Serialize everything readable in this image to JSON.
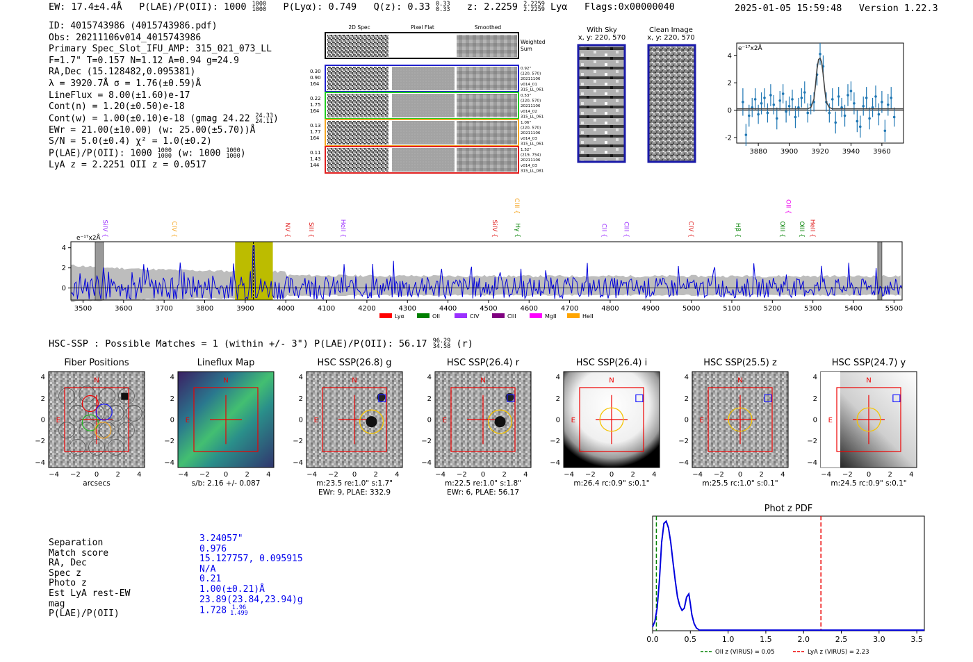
{
  "header": {
    "ew": "EW: 17.4±4.4Å",
    "plae_label": "P(LAE)/P(OII): 1000",
    "plae_hi": "1000",
    "plae_lo": "1000",
    "plya": "P(Lyα): 0.749",
    "qz_label": "Q(z): 0.33",
    "qz_hi": "0.33",
    "qz_lo": "0.33",
    "z_label": "z: 2.2259",
    "z_hi": "2.2259",
    "z_lo": "2.2259",
    "z_line": "Lyα",
    "flags": "Flags:0x00000040",
    "datetime": "2025-01-05 15:59:48",
    "version": "Version 1.22.3"
  },
  "info": {
    "id": "ID: 4015743986 (4015743986.pdf)",
    "obs": "Obs: 20211106v014_4015743986",
    "primary": "Primary Spec_Slot_IFU_AMP: 315_021_073_LL",
    "fiber": "F=1.7\"  T=0.157  N=1.12  A=0.94  g=24.9",
    "radec": "RA,Dec (15.128482,0.095381)",
    "lambda": "λ = 3920.7Å   σ = 1.76(±0.59)Å",
    "lineflux": "LineFlux = 8.00(±1.60)e-17",
    "contn": "Cont(n) = 1.20(±0.50)e-18",
    "contw": "Cont(w) = 1.00(±0.10)e-18 (gmag 24.22",
    "contw_hi": "24.33",
    "contw_lo": "24.11",
    "contw_end": ")",
    "ewr": "EWr = 21.00(±10.00) (w: 25.00(±5.70))Å",
    "sn": "S/N = 5.0(±0.4)  χ² = 1.0(±0.2)",
    "plae": "P(LAE)/P(OII): 1000",
    "plae_hi": "1000",
    "plae_lo": "1000",
    "plae_w": "(w: 1000",
    "plae_w_hi": "1000",
    "plae_w_lo": "1000",
    "plae_end": ")",
    "zs": "LyA z = 2.2251   OII z = 0.0517"
  },
  "cutouts": {
    "col_2d": "2D Spec",
    "col_flat": "Pixel Flat",
    "col_smooth": "Smoothed",
    "weighted": "Weighted",
    "sum": "Sum",
    "rows": [
      {
        "left": [
          "0.30",
          "0.90",
          "164"
        ],
        "right": [
          "0.92\"",
          "(220, 570)",
          "20211106",
          "v014_01",
          "315_LL_061"
        ],
        "color": "#1f1fcc"
      },
      {
        "left": [
          "0.22",
          "1.75",
          "164"
        ],
        "right": [
          "0.53\"",
          "(220, 570)",
          "20211106",
          "v014_02",
          "315_LL_061"
        ],
        "color": "#22cc22"
      },
      {
        "left": [
          "0.13",
          "1.77",
          "164"
        ],
        "right": [
          "1.06\"",
          "(220, 570)",
          "20211106",
          "v014_03",
          "315_LL_061"
        ],
        "color": "#f5a623"
      },
      {
        "left": [
          "0.11",
          "1.43",
          "144"
        ],
        "right": [
          "1.52\"",
          "(219, 754)",
          "20211106",
          "v014_03",
          "315_LL_081"
        ],
        "color": "#e02020"
      }
    ]
  },
  "with_sky": {
    "title": "With Sky",
    "coords": "x, y: 220, 570"
  },
  "clean_image": {
    "title": "Clean Image",
    "coords": "x, y: 220, 570"
  },
  "zoom_plot": {
    "unit": "e⁻¹⁷x2Å"
  },
  "full_spec": {
    "unit": "e⁻¹⁷x2Å"
  },
  "lines": [
    {
      "name": "SiIV",
      "x": 3550,
      "color": "#9b30ff",
      "row": 1
    },
    {
      "name": "CIV",
      "x": 3720,
      "color": "#f5a623",
      "row": 1
    },
    {
      "name": "NV",
      "x": 4000,
      "color": "#e02020",
      "row": 1
    },
    {
      "name": "SiII",
      "x": 4058,
      "color": "#e02020",
      "row": 1
    },
    {
      "name": "HeII",
      "x": 4137,
      "color": "#9b30ff",
      "row": 1
    },
    {
      "name": "SiIV",
      "x": 4510,
      "color": "#e02020",
      "row": 1
    },
    {
      "name": "CIII",
      "x": 4565,
      "color": "#f5a623",
      "row": 0
    },
    {
      "name": "Hγ",
      "x": 4567,
      "color": "#008000",
      "row": 1
    },
    {
      "name": "CII",
      "x": 4780,
      "color": "#9b30ff",
      "row": 1
    },
    {
      "name": "CIII",
      "x": 4835,
      "color": "#9b30ff",
      "row": 1
    },
    {
      "name": "CIV",
      "x": 4995,
      "color": "#e02020",
      "row": 1
    },
    {
      "name": "Hβ",
      "x": 5110,
      "color": "#008000",
      "row": 1
    },
    {
      "name": "OII",
      "x": 5235,
      "color": "#ee00ee",
      "row": 0
    },
    {
      "name": "OIII",
      "x": 5220,
      "color": "#008000",
      "row": 1
    },
    {
      "name": "OIII",
      "x": 5268,
      "color": "#008000",
      "row": 1
    },
    {
      "name": "HeII",
      "x": 5295,
      "color": "#e02020",
      "row": 1
    }
  ],
  "legend": [
    {
      "label": "Lyα",
      "color": "#ff0000"
    },
    {
      "label": "OII",
      "color": "#008000"
    },
    {
      "label": "CIV",
      "color": "#9b30ff"
    },
    {
      "label": "CIII",
      "color": "#800080"
    },
    {
      "label": "MgII",
      "color": "#ff00ff"
    },
    {
      "label": "HeII",
      "color": "#ffa500"
    }
  ],
  "hsc": {
    "line": "HSC-SSP : Possible Matches = 1 (within +/- 3\")  P(LAE)/P(OII): 56.17",
    "hi": "96.29",
    "lo": "34.58",
    "band": "(r)"
  },
  "panels": [
    {
      "title": "Fiber Positions",
      "cap1": "arcsecs",
      "cap2": ""
    },
    {
      "title": "Lineflux Map",
      "cap1": "s/b: 2.16 +/- 0.087",
      "cap2": ""
    },
    {
      "title": "HSC SSP(26.8) g",
      "cap1": "m:23.5  re:1.0\"  s:1.7\"",
      "cap2": "EWr: 9, PLAE: 332.9"
    },
    {
      "title": "HSC SSP(26.4) r",
      "cap1": "m:22.5  re:1.0\"  s:1.8\"",
      "cap2": "EWr: 6, PLAE: 56.17"
    },
    {
      "title": "HSC SSP(26.4) i",
      "cap1": "m:26.4 rc:0.9\"  s:0.1\"",
      "cap2": ""
    },
    {
      "title": "HSC SSP(25.5) z",
      "cap1": "m:25.5 rc:1.0\"  s:0.1\"",
      "cap2": ""
    },
    {
      "title": "HSC SSP(24.7) y",
      "cap1": "m:24.5 rc:0.9\"  s:0.1\"",
      "cap2": ""
    }
  ],
  "panel_ticks": {
    "x": [
      "−4",
      "−2",
      "0",
      "2",
      "4"
    ],
    "y": [
      "4",
      "2",
      "0",
      "−2",
      "−4"
    ],
    "N": "N",
    "E": "E"
  },
  "match": {
    "labels": [
      "Separation",
      "Match score",
      "RA, Dec",
      "Spec z",
      "Photo z",
      "Est LyA rest-EW",
      "mag",
      "P(LAE)/P(OII)"
    ],
    "values": [
      "3.24057\"",
      "0.976",
      "15.127757, 0.095915",
      "N/A",
      "0.21",
      "1.00(±0.21)Å",
      "23.89(23.84,23.94)g",
      "1.728"
    ],
    "plae_hi": "1.96",
    "plae_lo": "1.499"
  },
  "chart_data": [
    {
      "type": "line",
      "title": "",
      "ylabel": "e⁻¹⁷x2Å",
      "xlim": [
        3866,
        3974
      ],
      "ylim": [
        -2.4,
        4.9
      ],
      "x_ticks": [
        3880,
        3900,
        3920,
        3940,
        3960
      ],
      "y_ticks": [
        -2,
        0,
        2,
        4
      ],
      "series": [
        {
          "name": "data",
          "x": [
            3870,
            3872,
            3874,
            3876,
            3878,
            3880,
            3882,
            3884,
            3886,
            3888,
            3890,
            3892,
            3894,
            3896,
            3898,
            3900,
            3902,
            3904,
            3906,
            3908,
            3910,
            3912,
            3914,
            3916,
            3918,
            3920,
            3922,
            3924,
            3926,
            3928,
            3930,
            3932,
            3934,
            3936,
            3938,
            3940,
            3942,
            3944,
            3946,
            3948,
            3950,
            3952,
            3954,
            3956,
            3958,
            3960,
            3962,
            3964,
            3966,
            3968
          ],
          "values": [
            0.6,
            -1.8,
            -0.4,
            0.2,
            0.8,
            -0.3,
            0.5,
            0.9,
            -0.2,
            1.1,
            0.4,
            -0.6,
            0.7,
            1.2,
            -0.1,
            0.3,
            0.8,
            -0.5,
            0.2,
            0.9,
            1.3,
            -0.2,
            0.4,
            0.6,
            2.6,
            4.1,
            3.2,
            0.6,
            -0.2,
            0.8,
            -0.9,
            1.0,
            0.2,
            -0.4,
            1.1,
            1.4,
            0.5,
            -0.8,
            -1.2,
            0.3,
            0.9,
            -0.6,
            0.2,
            1.0,
            -0.3,
            0.6,
            -1.5,
            0.4,
            0.9,
            -0.5
          ],
          "errors": [
            1.0,
            0.8,
            0.8,
            0.7,
            0.8,
            0.7,
            0.8,
            0.7,
            0.7,
            0.8,
            0.7,
            0.8,
            0.7,
            0.7,
            0.8,
            0.7,
            0.7,
            0.8,
            0.7,
            0.7,
            0.8,
            0.7,
            0.7,
            0.7,
            0.8,
            0.8,
            0.8,
            0.7,
            0.7,
            0.8,
            0.8,
            0.7,
            0.7,
            0.8,
            0.8,
            0.7,
            0.8,
            0.8,
            0.8,
            0.7,
            0.8,
            0.8,
            0.7,
            0.8,
            0.8,
            0.8,
            0.8,
            0.8,
            0.8,
            0.7
          ]
        },
        {
          "name": "fit",
          "x": [
            3866,
            3912,
            3914,
            3916,
            3917,
            3918,
            3919,
            3920,
            3921,
            3922,
            3923,
            3924,
            3926,
            3928,
            3974
          ],
          "values": [
            0.1,
            0.1,
            0.2,
            0.8,
            1.8,
            3.0,
            3.7,
            3.8,
            3.5,
            2.6,
            1.5,
            0.6,
            0.2,
            0.1,
            0.1
          ]
        }
      ]
    },
    {
      "type": "line",
      "title": "",
      "ylabel": "e⁻¹⁷x2Å",
      "xlim": [
        3470,
        5520
      ],
      "ylim": [
        -1.2,
        4.6
      ],
      "x_ticks": [
        3500,
        3600,
        3700,
        3800,
        3900,
        4000,
        4100,
        4200,
        4300,
        4400,
        4500,
        4600,
        4700,
        4800,
        4900,
        5000,
        5100,
        5200,
        5300,
        5400,
        5500
      ],
      "y_ticks": [
        0,
        2,
        4
      ],
      "highlight_range": [
        3875,
        3968
      ],
      "marker_x": 3920,
      "masked_ranges": [
        [
          3530,
          3550
        ],
        [
          5460,
          5470
        ]
      ],
      "series": [
        {
          "name": "flux",
          "seed": 7,
          "x_range": [
            3470,
            5520
          ],
          "n": 640,
          "noise_start": 1.3,
          "noise_end": 0.9,
          "peak": {
            "x": 3920,
            "value": 4.2
          }
        },
        {
          "name": "error",
          "color": "#b0b0b0"
        }
      ]
    },
    {
      "type": "line",
      "title": "Phot z PDF",
      "xlim": [
        0.0,
        3.6
      ],
      "ylim": [
        0,
        1.0
      ],
      "x_ticks": [
        0.0,
        0.5,
        1.0,
        1.5,
        2.0,
        2.5,
        3.0,
        3.5
      ],
      "vlines": [
        {
          "x": 0.05,
          "color": "#008000",
          "label": "OII z (VIRUS) = 0.05"
        },
        {
          "x": 2.23,
          "color": "#ee0000",
          "label": "LyA z (VIRUS) = 2.23"
        }
      ],
      "series": [
        {
          "name": "pdf",
          "x": [
            0.0,
            0.03,
            0.06,
            0.09,
            0.12,
            0.15,
            0.18,
            0.21,
            0.24,
            0.27,
            0.3,
            0.33,
            0.36,
            0.39,
            0.42,
            0.45,
            0.48,
            0.5,
            0.52,
            0.55,
            0.58,
            0.62,
            0.7,
            0.8,
            1.0,
            1.5,
            2.0,
            2.5,
            3.0,
            3.6
          ],
          "values": [
            0.03,
            0.08,
            0.2,
            0.45,
            0.8,
            0.97,
            0.99,
            0.93,
            0.8,
            0.62,
            0.45,
            0.3,
            0.22,
            0.18,
            0.2,
            0.3,
            0.33,
            0.24,
            0.14,
            0.06,
            0.02,
            0.0,
            0.0,
            0.0,
            0.0,
            0.0,
            0.0,
            0.0,
            0.0,
            0.0
          ]
        }
      ]
    }
  ]
}
